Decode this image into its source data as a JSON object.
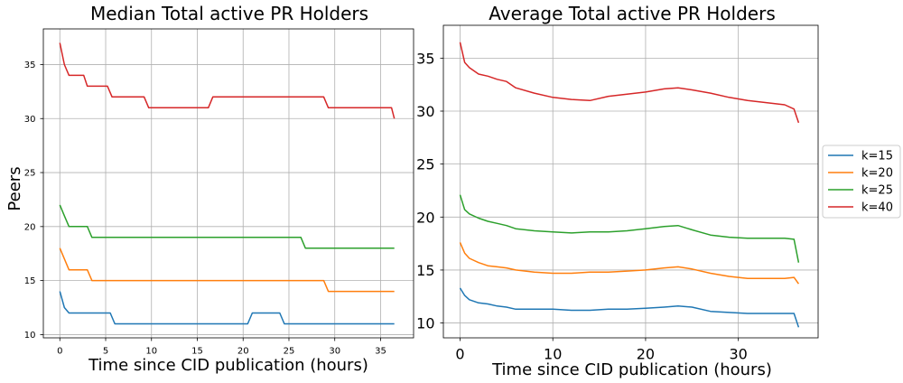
{
  "chart_data": [
    {
      "type": "line",
      "title": "Median Total active PR Holders",
      "xlabel": "Time since CID publication (hours)",
      "ylabel": "Peers",
      "xlim": [
        -1.8,
        38.6
      ],
      "ylim": [
        9.7,
        38.3
      ],
      "xticks": [
        0,
        5,
        10,
        15,
        20,
        25,
        30,
        35
      ],
      "yticks": [
        10,
        15,
        20,
        25,
        30,
        35
      ],
      "grid": true,
      "series": [
        {
          "name": "k=15",
          "color": "#1f77b4",
          "x": [
            0,
            0.5,
            1,
            5.5,
            6,
            20.5,
            21,
            24,
            24.5,
            36.5
          ],
          "y": [
            14,
            12.5,
            12,
            12,
            11,
            11,
            12,
            12,
            11,
            11
          ]
        },
        {
          "name": "k=20",
          "color": "#ff7f0e",
          "x": [
            0,
            1,
            3,
            3.5,
            28.8,
            29.3,
            36.5
          ],
          "y": [
            18,
            16,
            16,
            15,
            15,
            14,
            14
          ]
        },
        {
          "name": "k=25",
          "color": "#2ca02c",
          "x": [
            0,
            0.5,
            1,
            3,
            3.5,
            26.3,
            26.8,
            36.5
          ],
          "y": [
            22,
            21,
            20,
            20,
            19,
            19,
            18,
            18
          ]
        },
        {
          "name": "k=40",
          "color": "#d62728",
          "x": [
            0,
            0.5,
            1,
            2.6,
            3,
            5.2,
            5.7,
            9.2,
            9.7,
            16.2,
            16.7,
            28.8,
            29.3,
            36.2,
            36.5
          ],
          "y": [
            37,
            35,
            34,
            34,
            33,
            33,
            32,
            32,
            31,
            31,
            32,
            32,
            31,
            31,
            30
          ]
        }
      ]
    },
    {
      "type": "line",
      "title": "Average Total active PR Holders",
      "xlabel": "Time since CID publication (hours)",
      "ylabel": "",
      "xlim": [
        -1.8,
        38.6
      ],
      "ylim": [
        8.6,
        38.1
      ],
      "xticks": [
        0,
        10,
        20,
        30
      ],
      "yticks": [
        10,
        15,
        20,
        25,
        30,
        35
      ],
      "grid": true,
      "legend": {
        "placement": "right-outside",
        "entries": [
          "k=15",
          "k=20",
          "k=25",
          "k=40"
        ]
      },
      "series": [
        {
          "name": "k=15",
          "color": "#1f77b4",
          "x": [
            0,
            0.5,
            1,
            2,
            3,
            4,
            5,
            6,
            8,
            10,
            12,
            14,
            16,
            18,
            20,
            22,
            23.5,
            25,
            27,
            29,
            31,
            33,
            35,
            36,
            36.5
          ],
          "y": [
            13.3,
            12.6,
            12.2,
            11.9,
            11.8,
            11.6,
            11.5,
            11.3,
            11.3,
            11.3,
            11.2,
            11.2,
            11.3,
            11.3,
            11.4,
            11.5,
            11.6,
            11.5,
            11.1,
            11.0,
            10.9,
            10.9,
            10.9,
            10.9,
            9.6
          ]
        },
        {
          "name": "k=20",
          "color": "#ff7f0e",
          "x": [
            0,
            0.5,
            1,
            2,
            3,
            4,
            5,
            6,
            8,
            10,
            12,
            14,
            16,
            18,
            20,
            22,
            23.5,
            25,
            27,
            29,
            31,
            33,
            35,
            36,
            36.5
          ],
          "y": [
            17.6,
            16.6,
            16.1,
            15.7,
            15.4,
            15.3,
            15.2,
            15.0,
            14.8,
            14.7,
            14.7,
            14.8,
            14.8,
            14.9,
            15.0,
            15.2,
            15.3,
            15.1,
            14.7,
            14.4,
            14.2,
            14.2,
            14.2,
            14.3,
            13.7
          ]
        },
        {
          "name": "k=25",
          "color": "#2ca02c",
          "x": [
            0,
            0.5,
            1,
            2,
            3,
            4,
            5,
            6,
            8,
            10,
            12,
            14,
            16,
            18,
            20,
            22,
            23.5,
            25,
            27,
            29,
            31,
            33,
            35,
            36,
            36.5
          ],
          "y": [
            22.1,
            20.7,
            20.3,
            19.9,
            19.6,
            19.4,
            19.2,
            18.9,
            18.7,
            18.6,
            18.5,
            18.6,
            18.6,
            18.7,
            18.9,
            19.1,
            19.2,
            18.8,
            18.3,
            18.1,
            18.0,
            18.0,
            18.0,
            17.9,
            15.7
          ]
        },
        {
          "name": "k=40",
          "color": "#d62728",
          "x": [
            0,
            0.5,
            1,
            2,
            3,
            4,
            5,
            6,
            8,
            10,
            12,
            14,
            16,
            18,
            20,
            22,
            23.5,
            25,
            27,
            29,
            31,
            33,
            35,
            36,
            36.5
          ],
          "y": [
            36.5,
            34.6,
            34.1,
            33.5,
            33.3,
            33.0,
            32.8,
            32.2,
            31.7,
            31.3,
            31.1,
            31.0,
            31.4,
            31.6,
            31.8,
            32.1,
            32.2,
            32.0,
            31.7,
            31.3,
            31.0,
            30.8,
            30.6,
            30.2,
            28.9
          ]
        }
      ]
    }
  ]
}
